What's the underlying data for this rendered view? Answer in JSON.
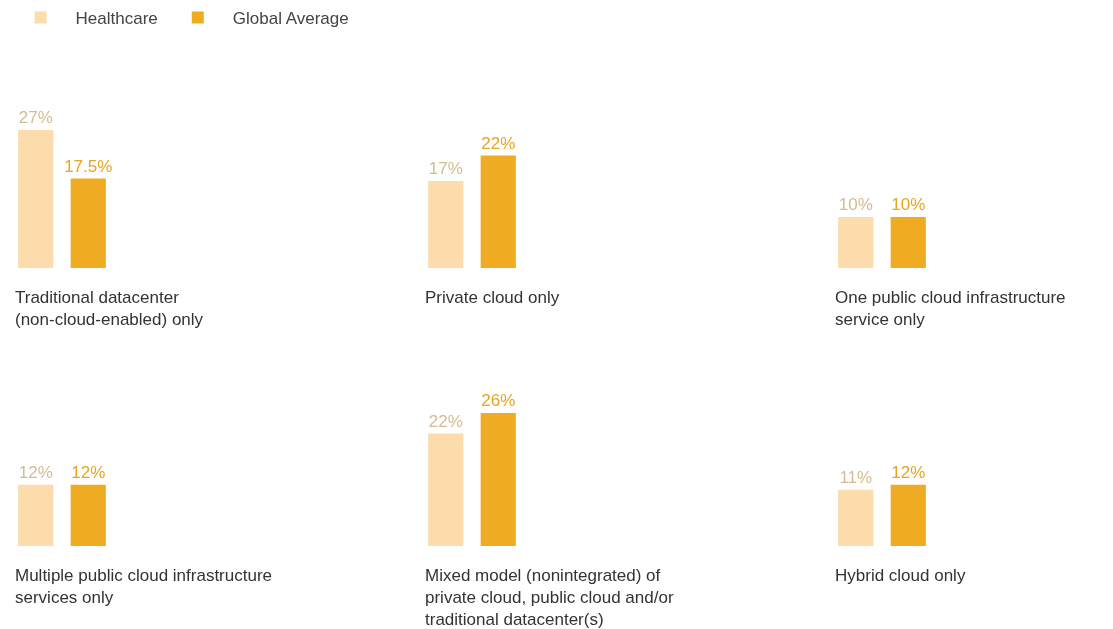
{
  "chart_data": [
    {
      "type": "bar",
      "legend": "top left",
      "categories": [
        "Traditional datacenter (non-cloud-enabled) only",
        "Private cloud only",
        "One public cloud infrastructure service only"
      ],
      "series": [
        {
          "name": "Healthcare",
          "color": "#fbdcaa",
          "values": [
            27,
            17,
            10
          ],
          "value_labels": [
            "27%",
            "17%",
            "10%"
          ]
        },
        {
          "name": "Global Average",
          "color": "#efab22",
          "values": [
            17.5,
            22,
            10
          ],
          "value_labels": [
            "17.5%",
            "22%",
            "10%"
          ]
        }
      ]
    },
    {
      "type": "bar",
      "categories": [
        "Multiple public cloud infrastructure services only",
        "Mixed model (nonintegrated) of private cloud, public cloud and/or traditional datacenter(s)",
        "Hybrid cloud only"
      ],
      "series": [
        {
          "color": "#fbdcaa",
          "values": [
            12,
            22,
            11
          ],
          "value_labels": [
            "12%",
            "22%",
            "11%"
          ]
        },
        {
          "color": "#efab22",
          "values": [
            12,
            26,
            12
          ],
          "value_labels": [
            "12%",
            "26%",
            "12%"
          ]
        }
      ]
    }
  ]
}
